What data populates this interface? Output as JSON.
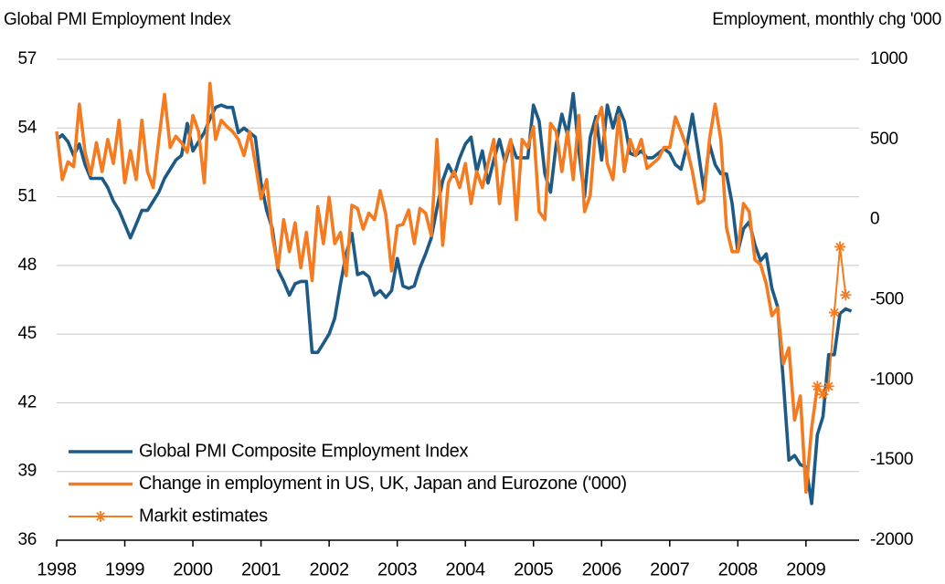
{
  "chart_data": {
    "type": "line",
    "title": "Global PMI Employment Index",
    "y2_title": "Employment, monthly chg '000",
    "xlim": [
      1998,
      2009.78
    ],
    "xticks": [
      1998,
      1999,
      2000,
      2001,
      2002,
      2003,
      2004,
      2005,
      2006,
      2007,
      2008,
      2009
    ],
    "ylim": [
      36,
      57
    ],
    "yticks": [
      36,
      39,
      42,
      45,
      48,
      51,
      54,
      57
    ],
    "y2lim": [
      -2000,
      1000
    ],
    "y2ticks": [
      -2000,
      -1500,
      -1000,
      -500,
      0,
      500,
      1000
    ],
    "grid": true,
    "legend": "lower left",
    "x": [
      1998,
      1998.083,
      1998.167,
      1998.25,
      1998.333,
      1998.417,
      1998.5,
      1998.583,
      1998.667,
      1998.75,
      1998.833,
      1998.917,
      1999,
      1999.083,
      1999.167,
      1999.25,
      1999.333,
      1999.417,
      1999.5,
      1999.583,
      1999.667,
      1999.75,
      1999.833,
      1999.917,
      2000,
      2000.083,
      2000.167,
      2000.25,
      2000.333,
      2000.417,
      2000.5,
      2000.583,
      2000.667,
      2000.75,
      2000.833,
      2000.917,
      2001,
      2001.083,
      2001.167,
      2001.25,
      2001.333,
      2001.417,
      2001.5,
      2001.583,
      2001.667,
      2001.75,
      2001.833,
      2001.917,
      2002,
      2002.083,
      2002.167,
      2002.25,
      2002.333,
      2002.417,
      2002.5,
      2002.583,
      2002.667,
      2002.75,
      2002.833,
      2002.917,
      2003,
      2003.083,
      2003.167,
      2003.25,
      2003.333,
      2003.417,
      2003.5,
      2003.583,
      2003.667,
      2003.75,
      2003.833,
      2003.917,
      2004,
      2004.083,
      2004.167,
      2004.25,
      2004.333,
      2004.417,
      2004.5,
      2004.583,
      2004.667,
      2004.75,
      2004.833,
      2004.917,
      2005,
      2005.083,
      2005.167,
      2005.25,
      2005.333,
      2005.417,
      2005.5,
      2005.583,
      2005.667,
      2005.75,
      2005.833,
      2005.917,
      2006,
      2006.083,
      2006.167,
      2006.25,
      2006.333,
      2006.417,
      2006.5,
      2006.583,
      2006.667,
      2006.75,
      2006.833,
      2006.917,
      2007,
      2007.083,
      2007.167,
      2007.25,
      2007.333,
      2007.417,
      2007.5,
      2007.583,
      2007.667,
      2007.75,
      2007.833,
      2007.917,
      2008,
      2008.083,
      2008.167,
      2008.25,
      2008.333,
      2008.417,
      2008.5,
      2008.583,
      2008.667,
      2008.75,
      2008.833,
      2008.917,
      2009,
      2009.083,
      2009.167,
      2009.25,
      2009.333,
      2009.417,
      2009.5,
      2009.583,
      2009.667
    ],
    "series": [
      {
        "name": "Global PMI Composite Employment Index",
        "color": "#1d5a86",
        "values": [
          53.5,
          53.7,
          53.4,
          52.8,
          53.3,
          52.4,
          51.8,
          51.8,
          51.8,
          51.4,
          50.8,
          50.4,
          49.8,
          49.2,
          49.8,
          50.4,
          50.4,
          50.8,
          51.2,
          51.8,
          52.2,
          52.6,
          52.8,
          54.2,
          53.0,
          53.4,
          53.8,
          54.4,
          54.9,
          55.0,
          54.9,
          54.9,
          53.8,
          54.0,
          53.8,
          53.6,
          51.6,
          50.4,
          49.6,
          47.8,
          47.3,
          46.7,
          47.2,
          47.3,
          47.3,
          44.2,
          44.2,
          44.6,
          45.0,
          45.7,
          47.2,
          48.5,
          49.4,
          47.6,
          47.7,
          47.5,
          46.7,
          46.9,
          46.6,
          46.9,
          48.3,
          47.1,
          47.0,
          47.1,
          47.9,
          48.5,
          49.2,
          50.5,
          51.7,
          52.4,
          51.9,
          52.7,
          53.3,
          53.6,
          52.1,
          53.0,
          51.6,
          52.6,
          53.5,
          52.5,
          53.4,
          52.7,
          52.7,
          52.7,
          55.0,
          54.3,
          52.0,
          51.2,
          53.3,
          54.6,
          53.7,
          55.5,
          53.0,
          51.0,
          53.6,
          54.5,
          52.6,
          55.0,
          54.0,
          54.9,
          54.3,
          52.9,
          52.8,
          53.0,
          52.7,
          52.7,
          52.9,
          53.1,
          52.9,
          52.4,
          52.2,
          53.2,
          54.6,
          53.0,
          51.3,
          53.3,
          52.4,
          52.0,
          52.0,
          50.7,
          48.6,
          49.6,
          49.9,
          48.9,
          48.2,
          48.5,
          47.0,
          46.2,
          43.0,
          39.5,
          39.7,
          39.3,
          39.2,
          37.6,
          40.6,
          41.4,
          44.1,
          44.1,
          45.9,
          46.1,
          46.0
        ]
      },
      {
        "name": "Change in employment in US, UK, Japan and Eurozone ('000)",
        "color": "#f47b20",
        "axis": "y2",
        "values": [
          550,
          250,
          360,
          330,
          720,
          420,
          280,
          480,
          300,
          500,
          350,
          620,
          230,
          430,
          250,
          620,
          300,
          200,
          500,
          780,
          450,
          520,
          480,
          420,
          650,
          550,
          230,
          850,
          500,
          620,
          580,
          550,
          500,
          400,
          550,
          350,
          130,
          250,
          -100,
          -300,
          0,
          -200,
          -20,
          -300,
          -80,
          -380,
          80,
          -150,
          140,
          -150,
          -80,
          -350,
          90,
          70,
          -60,
          40,
          0,
          180,
          30,
          -320,
          -40,
          -30,
          60,
          -150,
          70,
          40,
          -100,
          500,
          -160,
          230,
          300,
          200,
          350,
          100,
          300,
          200,
          350,
          500,
          100,
          380,
          500,
          0,
          500,
          450,
          580,
          50,
          0,
          600,
          550,
          300,
          550,
          250,
          650,
          50,
          150,
          600,
          700,
          350,
          250,
          650,
          300,
          500,
          400,
          500,
          320,
          350,
          380,
          450,
          450,
          640,
          550,
          450,
          300,
          100,
          120,
          500,
          720,
          500,
          -50,
          -200,
          -200,
          100,
          50,
          -250,
          -280,
          -400,
          -600,
          -550,
          -900,
          -800,
          -1250,
          -1100,
          -1700,
          -1300,
          -1040,
          null,
          null,
          null,
          null,
          null,
          null
        ]
      },
      {
        "name": "Markit estimates",
        "color": "#f47b20",
        "axis": "y2",
        "marker": "asterisk",
        "x": [
          2009.167,
          2009.25,
          2009.333,
          2009.417,
          2009.5,
          2009.583
        ],
        "values": [
          -1040,
          -1090,
          -1040,
          -580,
          -170,
          -470
        ]
      }
    ]
  }
}
